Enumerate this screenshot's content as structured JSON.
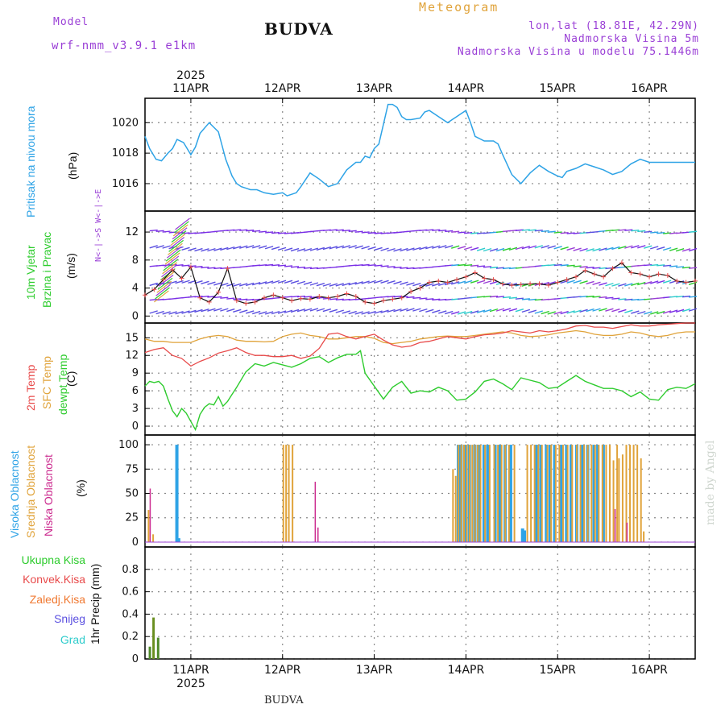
{
  "header": {
    "model_label": "Model",
    "model_name": "wrf-nmm_v3.9.1  e1km",
    "meteogram": "Meteogram",
    "station": "BUDVA",
    "coords": "lon,lat (18.81E, 42.29N)",
    "elevation": "Nadmorska Visina 5m",
    "model_elevation": "Nadmorska Visina u modelu 75.1446m",
    "year_top": "2025",
    "footer_station": "BUDVA",
    "credit": "made by Angel"
  },
  "colors": {
    "pressure": "#2ea3e6",
    "temp2m": "#e84a4a",
    "sfc": "#e0a33a",
    "dewpt": "#2ecc2e",
    "high_cloud": "#2ea3e6",
    "mid_cloud": "#e0a33a",
    "low_cloud": "#cc2b8f",
    "total_precip": "#2ecc2e",
    "conv_precip": "#e84a4a",
    "frz_precip": "#f07830",
    "snow": "#5a4fe0",
    "hail": "#2ecccc"
  },
  "chart_data": [
    {
      "type": "line",
      "name": "pressure",
      "ylabel_main": "Pritisak na nivou mora",
      "ylabel_unit": "(hPa)",
      "ylim": [
        1014.2,
        1021.6
      ],
      "yticks": [
        1016,
        1018,
        1020
      ],
      "x_dates": [
        "11APR",
        "12APR",
        "13APR",
        "14APR",
        "15APR",
        "16APR"
      ],
      "x_day_start": 10.5,
      "x_day_end": 16.5,
      "grid": true,
      "series": [
        {
          "x": [
            10.5,
            10.55,
            10.62,
            10.68,
            10.75,
            10.8,
            10.85,
            10.92,
            11.0,
            11.05,
            11.1,
            11.2,
            11.3,
            11.38,
            11.45,
            11.5,
            11.55,
            11.6,
            11.65,
            11.72,
            11.8,
            11.9,
            12.0,
            12.05,
            12.1,
            12.15,
            12.2,
            12.3,
            12.4,
            12.5,
            12.6,
            12.7,
            12.8,
            12.85,
            12.9,
            12.95,
            13.0,
            13.05,
            13.1,
            13.15,
            13.2,
            13.25,
            13.3,
            13.35,
            13.4,
            13.5,
            13.55,
            13.6,
            13.7,
            13.8,
            13.85,
            13.9,
            13.95,
            14.0,
            14.05,
            14.1,
            14.2,
            14.3,
            14.35,
            14.4,
            14.5,
            14.6,
            14.7,
            14.8,
            14.9,
            15.0,
            15.05,
            15.1,
            15.2,
            15.3,
            15.4,
            15.5,
            15.6,
            15.7,
            15.8,
            15.9,
            16.0,
            16.1,
            16.2,
            16.3,
            16.4,
            16.5
          ],
          "values": [
            1019.1,
            1018.3,
            1017.6,
            1017.5,
            1018.0,
            1018.3,
            1018.9,
            1018.7,
            1017.9,
            1018.4,
            1019.3,
            1020.0,
            1019.4,
            1017.6,
            1016.5,
            1016.0,
            1015.8,
            1015.7,
            1015.6,
            1015.6,
            1015.4,
            1015.3,
            1015.4,
            1015.2,
            1015.3,
            1015.4,
            1015.8,
            1016.7,
            1016.3,
            1015.8,
            1016.0,
            1016.9,
            1017.4,
            1017.4,
            1017.8,
            1017.7,
            1018.3,
            1018.6,
            1019.9,
            1021.2,
            1021.2,
            1021.0,
            1020.4,
            1020.2,
            1020.2,
            1020.3,
            1020.7,
            1020.8,
            1020.4,
            1020.0,
            1020.2,
            1020.4,
            1020.6,
            1020.8,
            1020.0,
            1019.1,
            1018.8,
            1018.8,
            1018.6,
            1017.9,
            1016.6,
            1016.0,
            1016.7,
            1017.2,
            1016.8,
            1016.5,
            1016.4,
            1016.8,
            1017.0,
            1017.3,
            1017.1,
            1016.9,
            1016.6,
            1016.8,
            1017.3,
            1017.6,
            1017.4,
            1017.4,
            1017.4,
            1017.4,
            1017.4,
            1017.4
          ]
        }
      ]
    },
    {
      "type": "line",
      "name": "wind",
      "ylabel_main": "10m Vjetar",
      "ylabel_sub": "Brzina i Pravac",
      "ylabel_unit": "(m/s)",
      "compass": "N<-|->S  W<-|->E",
      "ylim": [
        -1,
        15
      ],
      "yticks": [
        0,
        4,
        8,
        12
      ],
      "series": [
        {
          "name": "speed",
          "x": [
            10.5,
            10.6,
            10.7,
            10.8,
            10.9,
            11.0,
            11.1,
            11.2,
            11.3,
            11.4,
            11.5,
            11.6,
            11.7,
            11.8,
            11.9,
            12.0,
            12.1,
            12.2,
            12.3,
            12.4,
            12.5,
            12.6,
            12.7,
            12.8,
            12.9,
            13.0,
            13.1,
            13.2,
            13.3,
            13.4,
            13.5,
            13.6,
            13.7,
            13.8,
            13.9,
            14.0,
            14.1,
            14.2,
            14.3,
            14.4,
            14.5,
            14.6,
            14.7,
            14.8,
            14.9,
            15.0,
            15.1,
            15.2,
            15.3,
            15.4,
            15.5,
            15.6,
            15.7,
            15.8,
            15.9,
            16.0,
            16.1,
            16.2,
            16.3,
            16.4,
            16.5
          ],
          "values": [
            3.0,
            3.8,
            5.2,
            6.6,
            5.4,
            7.0,
            2.6,
            2.0,
            3.4,
            6.8,
            2.2,
            1.8,
            2.0,
            2.6,
            3.0,
            2.6,
            2.2,
            2.5,
            2.4,
            2.8,
            2.6,
            2.8,
            3.2,
            2.8,
            2.0,
            1.8,
            2.2,
            2.4,
            2.6,
            3.5,
            4.0,
            4.8,
            5.0,
            4.8,
            5.2,
            5.6,
            6.2,
            5.4,
            5.2,
            4.6,
            4.4,
            4.5,
            4.6,
            4.6,
            4.4,
            4.8,
            5.2,
            5.6,
            6.5,
            6.0,
            5.6,
            6.8,
            7.6,
            6.2,
            6.0,
            5.6,
            6.0,
            5.8,
            5.0,
            4.8,
            5.0
          ]
        }
      ]
    },
    {
      "type": "line",
      "name": "temperature",
      "ylabel_lines": [
        "2m Temp",
        "SFC Temp",
        "dewpt Temp"
      ],
      "ylabel_unit": "(C)",
      "ylim": [
        -1.5,
        17.5
      ],
      "yticks": [
        0,
        3,
        6,
        9,
        12,
        15
      ],
      "series": [
        {
          "name": "2m Temp",
          "x": [
            10.5,
            10.6,
            10.7,
            10.8,
            10.9,
            11.0,
            11.1,
            11.2,
            11.3,
            11.4,
            11.5,
            11.6,
            11.7,
            11.8,
            11.9,
            12.0,
            12.1,
            12.2,
            12.3,
            12.4,
            12.5,
            12.6,
            12.7,
            12.8,
            12.9,
            13.0,
            13.1,
            13.2,
            13.3,
            13.4,
            13.5,
            13.6,
            13.7,
            13.8,
            13.9,
            14.0,
            14.1,
            14.2,
            14.3,
            14.4,
            14.5,
            14.6,
            14.7,
            14.8,
            14.9,
            15.0,
            15.1,
            15.2,
            15.3,
            15.4,
            15.5,
            15.6,
            15.7,
            15.8,
            15.9,
            16.0,
            16.1,
            16.2,
            16.3,
            16.4,
            16.5
          ],
          "values": [
            12.5,
            13.0,
            13.3,
            12.0,
            11.5,
            10.2,
            11.0,
            11.6,
            12.4,
            12.8,
            13.3,
            12.5,
            12.0,
            12.0,
            11.8,
            11.8,
            12.0,
            11.5,
            11.9,
            13.2,
            15.6,
            15.8,
            15.2,
            14.8,
            15.2,
            15.6,
            14.6,
            13.8,
            13.4,
            13.6,
            14.2,
            14.4,
            14.8,
            15.2,
            15.0,
            14.8,
            15.2,
            15.5,
            15.6,
            15.8,
            16.2,
            16.0,
            15.8,
            16.2,
            16.0,
            16.2,
            16.5,
            17.0,
            17.1,
            16.8,
            16.8,
            16.6,
            16.9,
            17.2,
            17.0,
            17.0,
            17.2,
            17.3,
            17.4,
            17.5,
            17.5
          ]
        },
        {
          "name": "SFC Temp",
          "x": [
            10.5,
            10.6,
            10.7,
            10.8,
            10.9,
            11.0,
            11.1,
            11.2,
            11.3,
            11.4,
            11.5,
            11.6,
            11.7,
            11.8,
            11.9,
            12.0,
            12.1,
            12.2,
            12.3,
            12.4,
            12.5,
            12.6,
            12.7,
            12.8,
            12.9,
            13.0,
            13.1,
            13.2,
            13.3,
            13.4,
            13.5,
            13.6,
            13.7,
            13.8,
            13.9,
            14.0,
            14.1,
            14.2,
            14.3,
            14.4,
            14.5,
            14.6,
            14.7,
            14.8,
            14.9,
            15.0,
            15.1,
            15.2,
            15.3,
            15.4,
            15.5,
            15.6,
            15.7,
            15.8,
            15.9,
            16.0,
            16.1,
            16.2,
            16.3,
            16.4,
            16.5
          ],
          "values": [
            14.8,
            14.4,
            14.4,
            14.2,
            14.2,
            14.2,
            14.8,
            15.2,
            15.4,
            15.2,
            14.6,
            14.4,
            14.4,
            14.3,
            14.4,
            15.2,
            15.6,
            15.8,
            15.4,
            15.2,
            14.8,
            14.8,
            15.0,
            15.2,
            15.2,
            14.9,
            14.2,
            14.0,
            14.2,
            14.4,
            14.8,
            15.0,
            15.2,
            15.3,
            15.2,
            15.2,
            15.4,
            15.6,
            15.8,
            16.0,
            15.8,
            15.4,
            15.2,
            15.3,
            15.5,
            15.8,
            16.0,
            16.2,
            16.0,
            15.6,
            15.4,
            15.4,
            15.6,
            16.0,
            15.8,
            15.4,
            15.2,
            15.4,
            15.8,
            16.0,
            16.0
          ]
        },
        {
          "name": "dewpt Temp",
          "x": [
            10.5,
            10.55,
            10.6,
            10.65,
            10.7,
            10.75,
            10.8,
            10.85,
            10.9,
            10.95,
            11.0,
            11.05,
            11.1,
            11.15,
            11.2,
            11.25,
            11.3,
            11.35,
            11.4,
            11.45,
            11.5,
            11.6,
            11.7,
            11.8,
            11.9,
            12.0,
            12.1,
            12.2,
            12.3,
            12.4,
            12.5,
            12.6,
            12.7,
            12.8,
            12.85,
            12.9,
            13.0,
            13.1,
            13.2,
            13.3,
            13.4,
            13.5,
            13.6,
            13.7,
            13.8,
            13.9,
            14.0,
            14.1,
            14.2,
            14.3,
            14.4,
            14.5,
            14.6,
            14.7,
            14.8,
            14.9,
            15.0,
            15.1,
            15.2,
            15.3,
            15.4,
            15.5,
            15.6,
            15.7,
            15.8,
            15.9,
            16.0,
            16.1,
            16.2,
            16.3,
            16.4,
            16.5
          ],
          "values": [
            6.8,
            7.6,
            7.4,
            7.6,
            6.8,
            4.6,
            2.6,
            1.6,
            3.0,
            2.2,
            0.8,
            -0.6,
            2.0,
            3.2,
            3.8,
            3.6,
            5.0,
            3.4,
            4.2,
            5.4,
            6.6,
            9.2,
            10.6,
            10.2,
            10.8,
            10.4,
            10.0,
            10.6,
            11.5,
            11.8,
            10.8,
            11.6,
            12.2,
            12.2,
            12.8,
            9.0,
            6.8,
            4.6,
            6.6,
            7.6,
            5.6,
            6.0,
            5.8,
            6.6,
            6.0,
            4.4,
            4.6,
            5.8,
            7.6,
            8.0,
            7.2,
            6.2,
            8.2,
            7.8,
            7.4,
            6.4,
            6.6,
            7.6,
            8.6,
            7.6,
            7.0,
            6.4,
            6.4,
            6.0,
            5.0,
            5.8,
            4.6,
            4.4,
            6.2,
            6.6,
            6.4,
            7.2
          ]
        }
      ]
    },
    {
      "type": "bar",
      "name": "clouds",
      "ylabel_lines": [
        "Visoka Oblacnost",
        "Srednja Oblacnost",
        "Niska Oblacnost"
      ],
      "ylabel_unit": "(%)",
      "ylim": [
        -5,
        110
      ],
      "yticks": [
        0,
        25,
        50,
        75,
        100
      ],
      "series": [
        {
          "name": "Visoka Oblacnost",
          "x": [
            10.83,
            10.85,
            13.9,
            13.93,
            13.97,
            14.02,
            14.08,
            14.12,
            14.18,
            14.22,
            14.3,
            14.35,
            14.41,
            14.47,
            14.6,
            14.62,
            14.75,
            14.8,
            14.86,
            14.9,
            14.95,
            15.02,
            15.08,
            15.13,
            15.19,
            15.25,
            15.31,
            15.38,
            15.42,
            15.48
          ],
          "values": [
            100,
            4,
            100,
            100,
            100,
            100,
            100,
            100,
            100,
            100,
            100,
            100,
            100,
            100,
            14,
            12,
            100,
            100,
            100,
            100,
            100,
            100,
            100,
            100,
            100,
            100,
            100,
            100,
            100,
            100
          ]
        },
        {
          "name": "Srednja Oblacnost",
          "x": [
            10.53,
            10.58,
            12.0,
            12.03,
            12.06,
            12.1,
            13.85,
            13.88,
            13.91,
            13.94,
            13.97,
            14.0,
            14.03,
            14.06,
            14.09,
            14.12,
            14.15,
            14.2,
            14.25,
            14.3,
            14.34,
            14.38,
            14.42,
            14.46,
            14.52,
            14.66,
            14.7,
            14.74,
            14.78,
            14.82,
            14.88,
            14.92,
            14.97,
            15.01,
            15.05,
            15.1,
            15.15,
            15.2,
            15.24,
            15.28,
            15.32,
            15.36,
            15.4,
            15.44,
            15.48,
            15.52,
            15.56,
            15.6,
            15.64,
            15.66,
            15.7,
            15.74,
            15.78,
            15.82,
            15.86,
            15.9,
            15.93
          ],
          "values": [
            33,
            8,
            100,
            100,
            100,
            100,
            75,
            68,
            100,
            100,
            100,
            100,
            100,
            100,
            100,
            100,
            100,
            100,
            100,
            100,
            100,
            100,
            100,
            100,
            100,
            100,
            100,
            100,
            100,
            100,
            100,
            100,
            100,
            100,
            100,
            100,
            100,
            100,
            100,
            100,
            100,
            100,
            100,
            100,
            100,
            100,
            100,
            84,
            100,
            86,
            90,
            100,
            100,
            100,
            100,
            86,
            11
          ]
        },
        {
          "name": "Niska Oblacnost",
          "x": [
            10.55,
            12.35,
            12.38,
            15.62,
            15.75
          ],
          "values": [
            55,
            62,
            15,
            34,
            20
          ]
        }
      ]
    },
    {
      "type": "bar",
      "name": "precipitation",
      "ylabel_unit": "1hr Precip (mm)",
      "legend": [
        "Ukupna  Kisa",
        "Konvek.Kisa",
        "Zaledj.Kisa",
        "Snijeg",
        "Grad"
      ],
      "ylim": [
        0,
        1.0
      ],
      "yticks": [
        0,
        0.2,
        0.4,
        0.6,
        0.8
      ],
      "ytick_labels": [
        "0",
        "0.2",
        "0.4",
        "0.6",
        "0.8"
      ],
      "series": [
        {
          "name": "Ukupna  Kisa",
          "x": [
            10.54,
            10.58,
            10.63
          ],
          "values": [
            0.11,
            0.37,
            0.19
          ]
        }
      ]
    }
  ]
}
